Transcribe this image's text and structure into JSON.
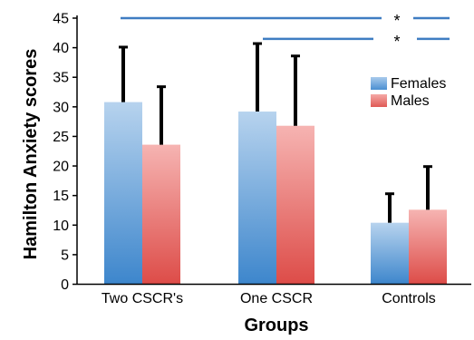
{
  "chart_data": {
    "type": "bar",
    "ylabel": "Hamilton Anxiety scores",
    "xlabel": "Groups",
    "ylim": [
      0,
      45
    ],
    "yticks": [
      0,
      5,
      10,
      15,
      20,
      25,
      30,
      35,
      40,
      45
    ],
    "categories": [
      "Two CSCR's",
      "One CSCR",
      "Controls"
    ],
    "series": [
      {
        "name": "Females",
        "values": [
          30.8,
          29.2,
          10.4
        ],
        "errors": [
          9.3,
          11.5,
          4.9
        ],
        "color_top": "#b7d3ee",
        "color_bottom": "#3d86cc"
      },
      {
        "name": "Males",
        "values": [
          23.6,
          26.8,
          12.6
        ],
        "errors": [
          9.8,
          11.8,
          7.3
        ],
        "color_top": "#f6b4b2",
        "color_bottom": "#dd4c48"
      }
    ],
    "legend": {
      "placement": "right"
    },
    "significance": [
      {
        "label": "*",
        "from": "Two CSCR's",
        "to": "Controls",
        "y": 45
      },
      {
        "label": "*",
        "from": "One CSCR",
        "to": "Controls",
        "y": 41.5
      }
    ],
    "axis_color": "#000000",
    "sig_line_color": "#3f7dc2"
  }
}
